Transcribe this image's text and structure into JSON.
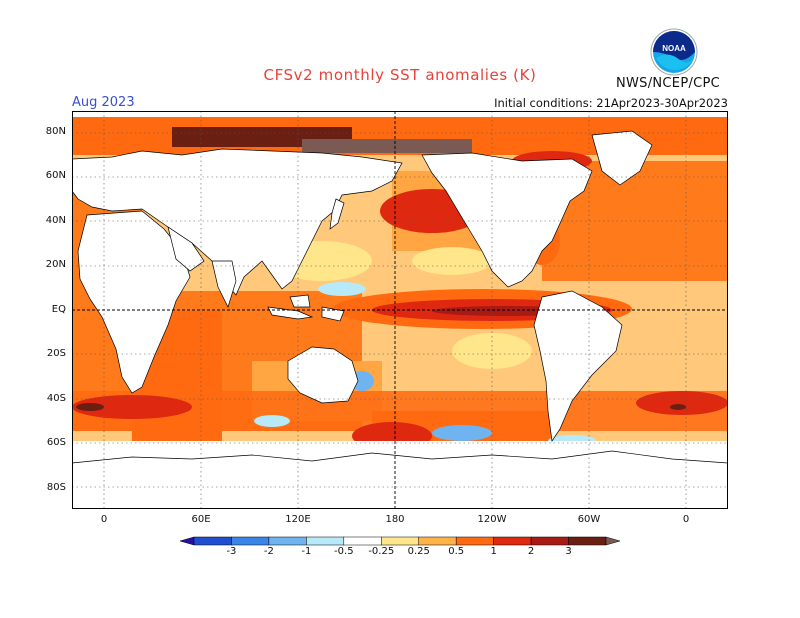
{
  "header": {
    "title": "CFSv2 monthly SST anomalies (K)",
    "valid_month": "Aug 2023",
    "initial_conditions": "Initial conditions: 21Apr2023-30Apr2023",
    "agency": "NWS/NCEP/CPC",
    "logo_text": "NOAA"
  },
  "map": {
    "projection": "cylindrical equidistant",
    "lat_labels": [
      "80N",
      "60N",
      "40N",
      "20N",
      "EQ",
      "20S",
      "40S",
      "60S",
      "80S"
    ],
    "lon_labels": [
      "0",
      "60E",
      "120E",
      "180",
      "120W",
      "60W",
      "0"
    ],
    "reference_lines": [
      "equator",
      "date line"
    ]
  },
  "colorbar": {
    "labels": [
      "-3",
      "-2",
      "-1",
      "-0.5",
      "-0.25",
      "0.25",
      "0.5",
      "1",
      "2",
      "3"
    ],
    "colors": [
      "#2a0fa6",
      "#1f4fd0",
      "#3a86e8",
      "#6fb3f0",
      "#b7e9f8",
      "#ffffff",
      "#ffe68a",
      "#ffb347",
      "#ff6a10",
      "#df2810",
      "#a81a14",
      "#6b1e12",
      "#7a5a52"
    ]
  }
}
